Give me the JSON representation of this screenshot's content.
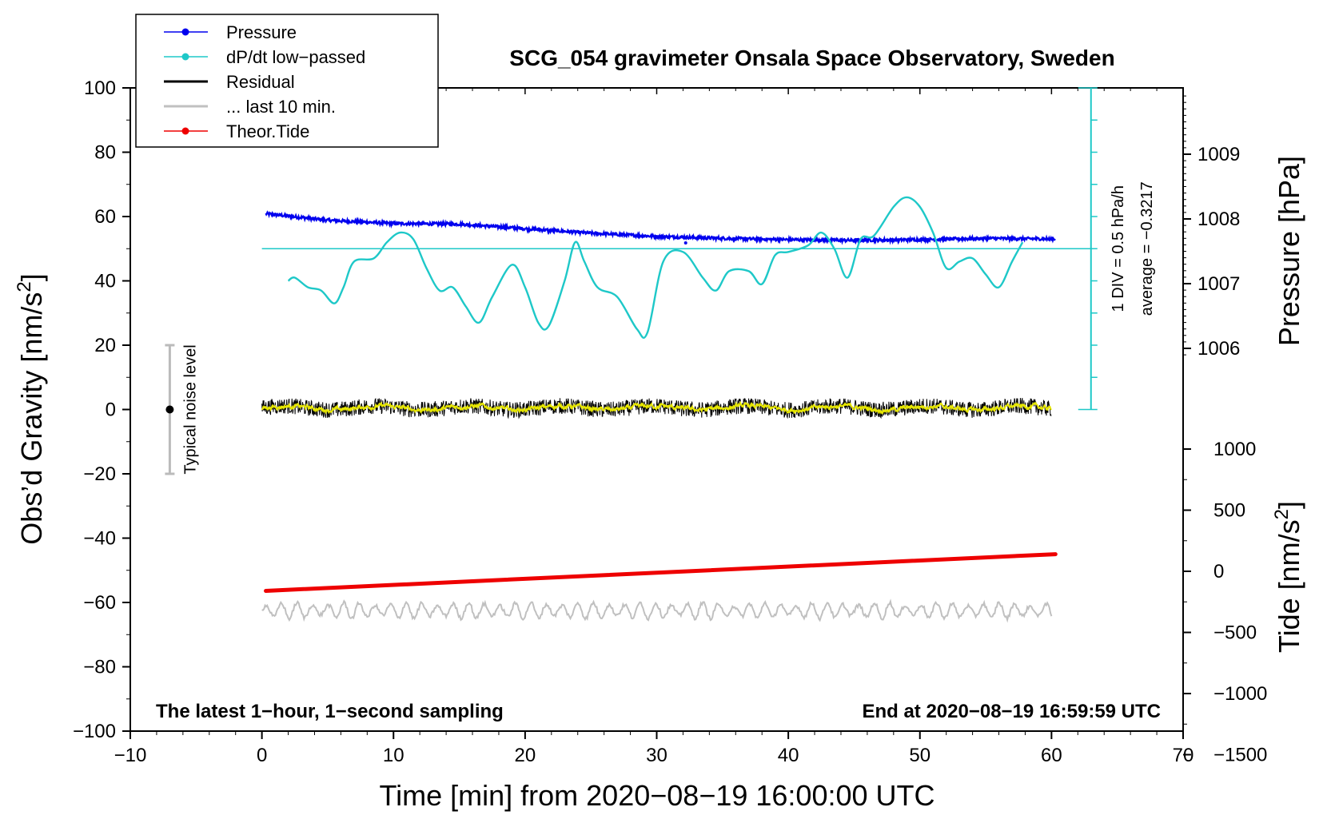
{
  "chart_data": {
    "type": "line",
    "title": "SCG_054 gravimeter Onsala Space Observatory, Sweden",
    "xlabel": "Time [min] from 2020−08−19 16:00:00 UTC",
    "xlim": [
      -10,
      70
    ],
    "x_ticks": [
      -10,
      0,
      10,
      20,
      30,
      40,
      50,
      60,
      70
    ],
    "x_tick_labels": [
      "−10",
      "0",
      "10",
      "20",
      "30",
      "40",
      "50",
      "60",
      "70"
    ],
    "left_axis": {
      "label_main": "Obs’d Gravity [nm/s",
      "label_sup": "2",
      "label_end": "]",
      "ylim": [
        -100,
        100
      ],
      "ticks": [
        100,
        80,
        60,
        40,
        20,
        0,
        -20,
        -40,
        -60,
        -80,
        -100
      ],
      "tick_labels": [
        "100",
        "80",
        "60",
        "40",
        "20",
        "0",
        "−20",
        "−40",
        "−60",
        "−80",
        "−100"
      ]
    },
    "pressure_axis": {
      "label": "Pressure [hPa]",
      "ylim": [
        1005.0,
        1010.0
      ],
      "ticks": [
        1009,
        1008,
        1007,
        1006
      ],
      "tick_labels": [
        "1009",
        "1008",
        "1007",
        "1006"
      ]
    },
    "tide_axis": {
      "label_main": "Tide [nm/s",
      "label_sup": "2",
      "label_end": "]",
      "ylim": [
        -1500,
        1500
      ],
      "ticks": [
        1000,
        500,
        0,
        -500,
        -1000,
        -1500
      ],
      "tick_labels": [
        "1000",
        "500",
        "0",
        "−500",
        "−1000",
        "−1500"
      ]
    },
    "legend": {
      "position": "top-left",
      "entries": [
        {
          "name": "Pressure",
          "color": "#0000ee",
          "marker": true
        },
        {
          "name": "dP/dt low−passed",
          "color": "#1ec8c8",
          "marker": true
        },
        {
          "name": "Residual",
          "color": "#000000",
          "marker": false
        },
        {
          "name": "... last 10 min.",
          "color": "#c0c0c0",
          "marker": false
        },
        {
          "name": "Theor.Tide",
          "color": "#ee0000",
          "marker": true
        }
      ]
    },
    "series": [
      {
        "name": "Pressure",
        "axis": "pressure",
        "color": "#0000ee",
        "x": [
          0.3,
          5,
          10,
          15,
          20,
          25,
          30,
          35,
          40,
          45,
          50,
          55,
          60.3
        ],
        "y": [
          1008.08,
          1007.98,
          1007.93,
          1007.92,
          1007.85,
          1007.78,
          1007.73,
          1007.7,
          1007.68,
          1007.67,
          1007.68,
          1007.7,
          1007.69
        ]
      },
      {
        "name": "dP/dt low−passed",
        "axis": "gravity",
        "color": "#1ec8c8",
        "x": [
          2,
          2.5,
          3.5,
          4.5,
          5.5,
          6.2,
          7,
          8.5,
          9.5,
          10.5,
          11.5,
          12.5,
          13.5,
          14.5,
          15.5,
          16.5,
          17.5,
          19,
          20,
          21,
          21.8,
          23,
          23.8,
          24.5,
          25.5,
          27,
          28.5,
          29.3,
          30.5,
          32,
          33.5,
          34.5,
          35.5,
          37,
          38,
          39,
          40,
          41.5,
          42.5,
          43.5,
          44.5,
          45.5,
          46.5,
          48,
          49,
          50,
          51,
          52,
          53,
          54,
          55,
          56,
          57,
          57.8
        ],
        "y": [
          40,
          41,
          38,
          37,
          33,
          38,
          46,
          47,
          52,
          55,
          53,
          44,
          37,
          38,
          32,
          27,
          35,
          45,
          38,
          27,
          26,
          40,
          52,
          46,
          38,
          35,
          25,
          24,
          46,
          49,
          41,
          37,
          43,
          43,
          39,
          48,
          49,
          51,
          55,
          50,
          41,
          53,
          54,
          63,
          66,
          63,
          55,
          44,
          46,
          47,
          42,
          38,
          46,
          52
        ]
      },
      {
        "name": "dP/dt reference (average)",
        "axis": "gravity",
        "color": "#1ec8c8",
        "x": [
          0,
          63
        ],
        "y": [
          50,
          50
        ]
      },
      {
        "name": "Residual",
        "axis": "gravity",
        "color": "#000000",
        "x_range": [
          0,
          60
        ],
        "center": 0.5,
        "amplitude": 2.5
      },
      {
        "name": "... last 10 min.",
        "axis": "gravity",
        "color": "#c0c0c0",
        "x_range": [
          0,
          60
        ],
        "center": -62.5,
        "amplitude": 2.5
      },
      {
        "name": "Theor.Tide",
        "axis": "tide",
        "color": "#ee0000",
        "x": [
          0.3,
          60.3
        ],
        "y": [
          -160,
          140
        ]
      }
    ],
    "annotations": {
      "noise_label": "Typical noise level",
      "noise_range": [
        -20,
        20
      ],
      "noise_x": -7,
      "scale_label_1": "1 DIV = 0.5 hPa/h",
      "scale_label_2": "average = −0.3217",
      "scale_x": 63,
      "scale_range": [
        0,
        100
      ],
      "bottom_left": "The latest 1−hour, 1−second sampling",
      "bottom_right": "End at 2020−08−19 16:59:59 UTC"
    }
  }
}
